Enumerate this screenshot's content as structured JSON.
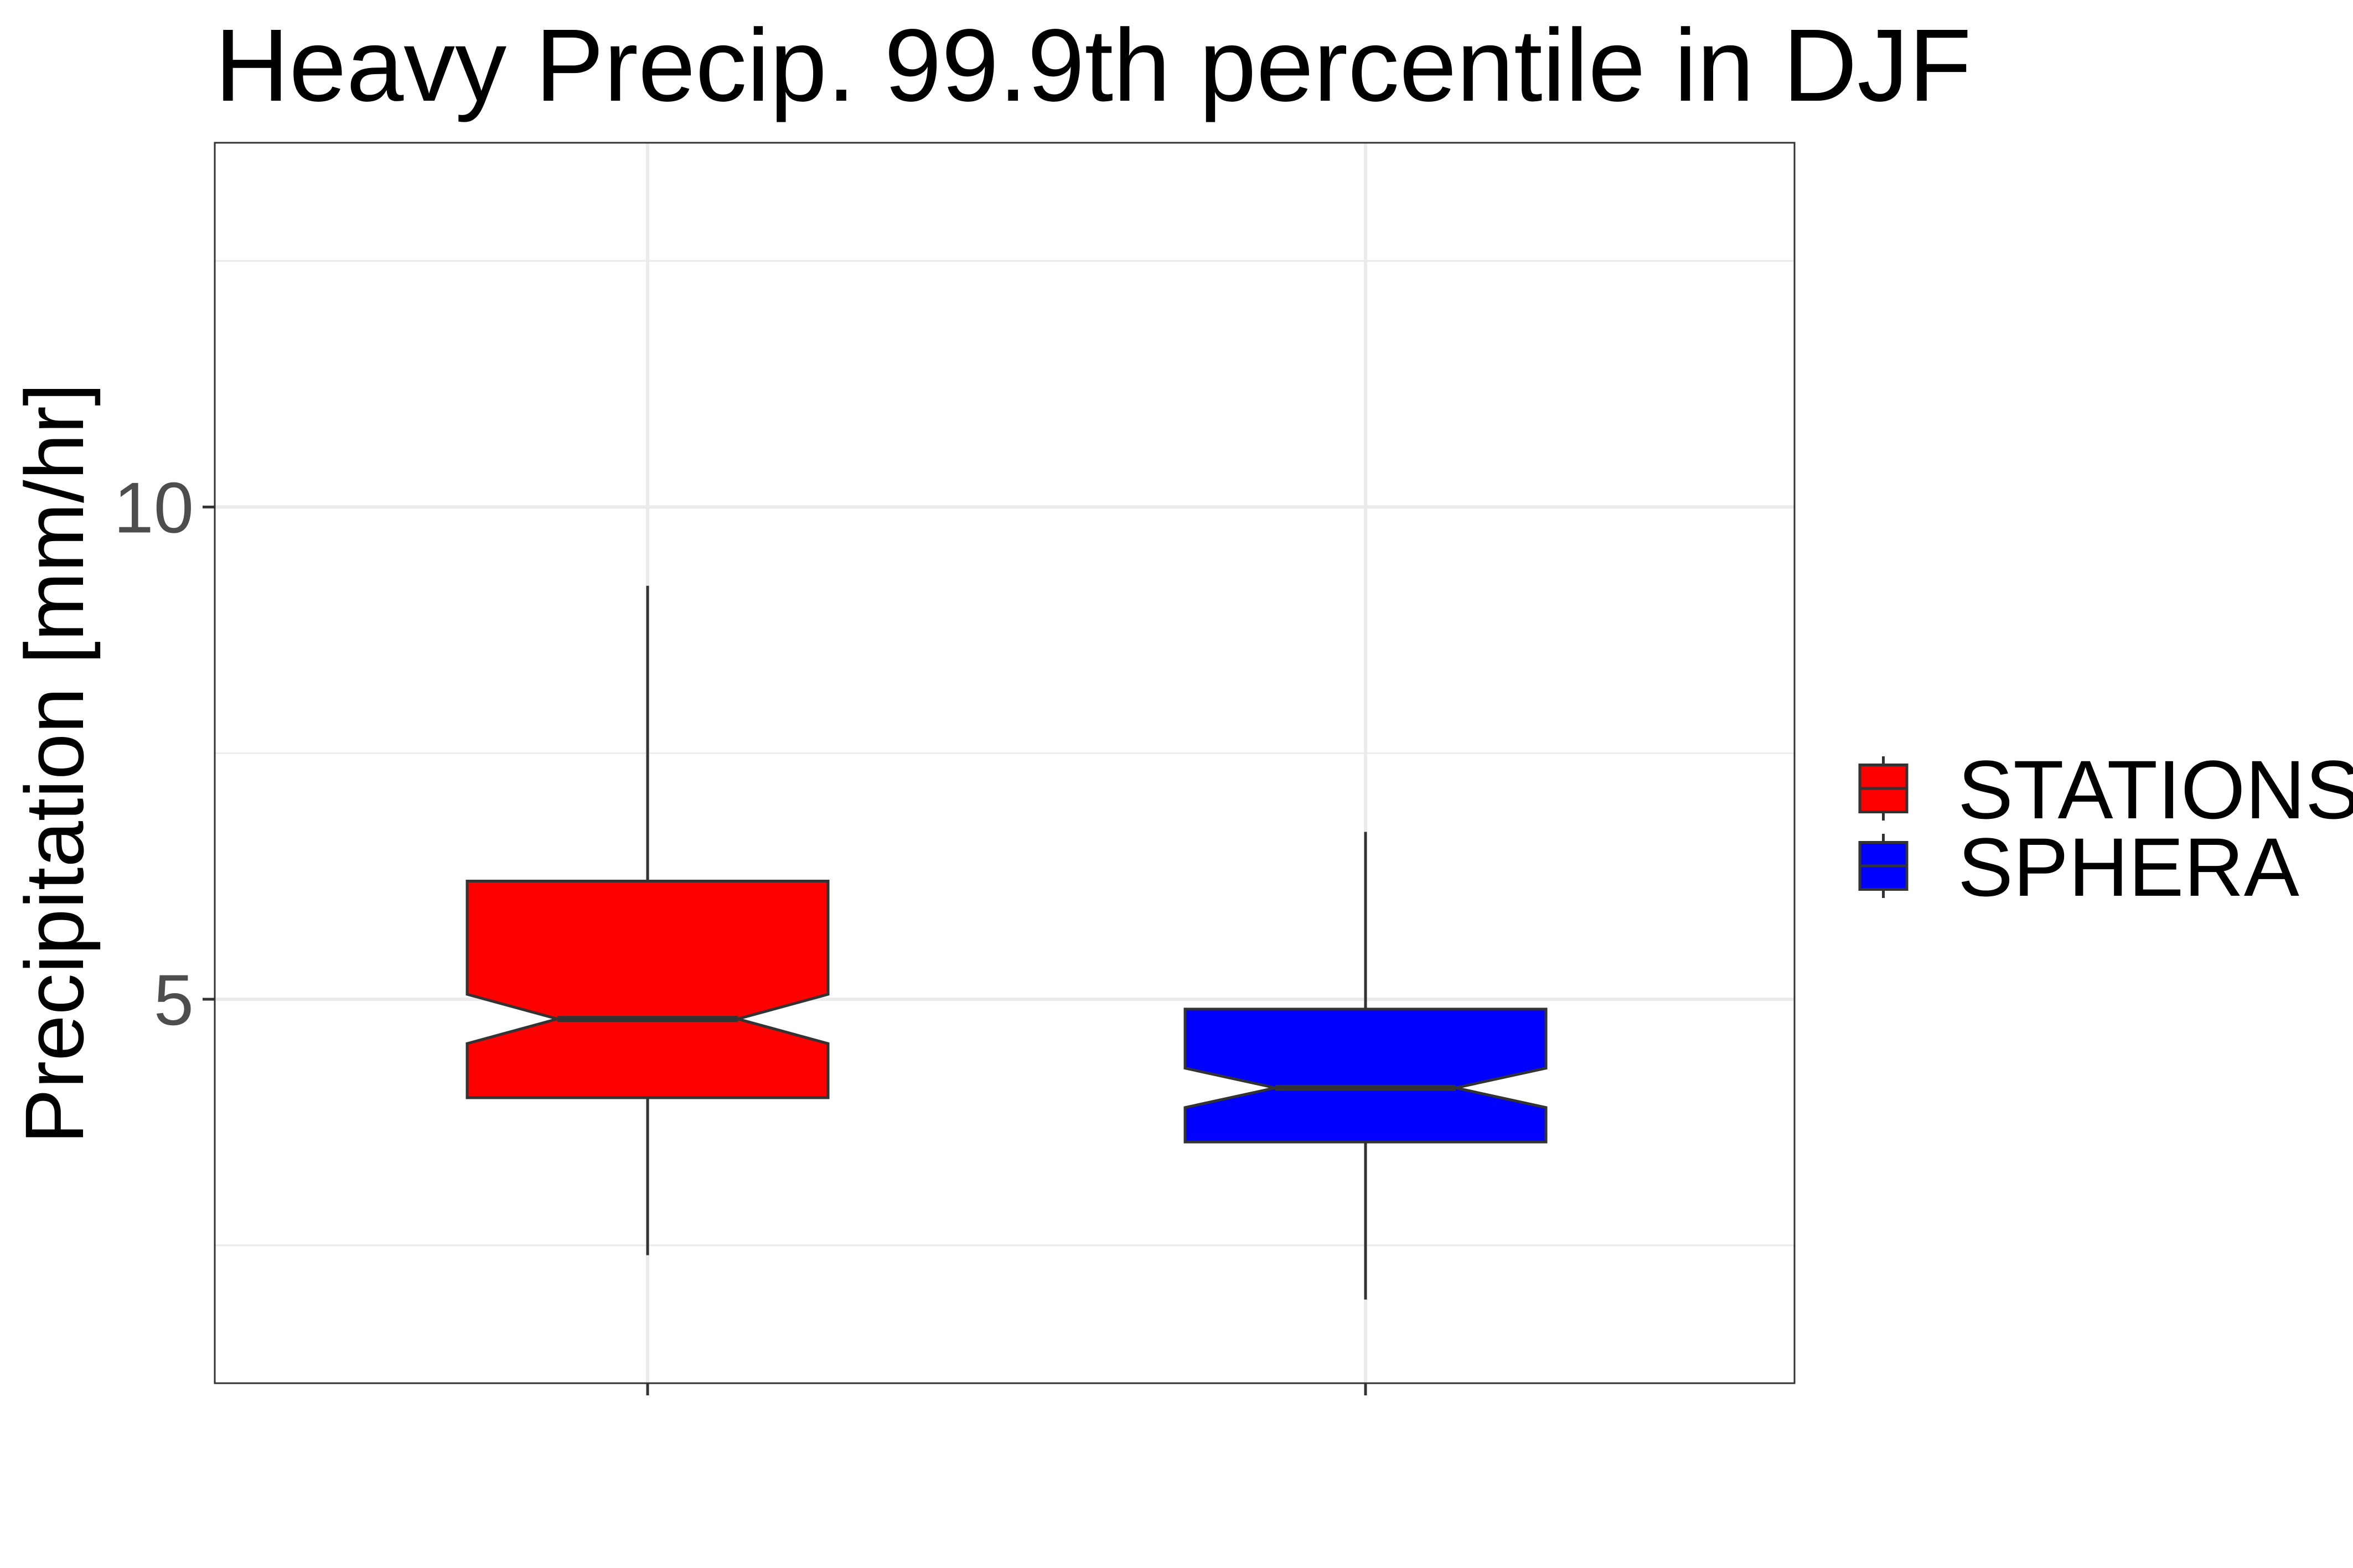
{
  "chart_data": {
    "type": "boxplot",
    "title": "Heavy Precip. 99.9th percentile in DJF",
    "xlabel": "",
    "ylabel": "Precipitation [mm/hr]",
    "ylim": [
      1.1,
      13.7
    ],
    "yticks": [
      5,
      10
    ],
    "y_tick_labels": [
      "5",
      "10"
    ],
    "y_minor_gridlines": [
      2.5,
      7.5,
      12.5
    ],
    "grid": true,
    "notched": true,
    "legend": {
      "position": "right"
    },
    "series": [
      {
        "name": "STATIONS",
        "color": "#ff0000",
        "whisker_low": 2.4,
        "q1": 4.0,
        "median": 4.8,
        "q3": 6.2,
        "whisker_high": 9.2,
        "notch_low": 4.55,
        "notch_high": 5.05
      },
      {
        "name": "SPHERA",
        "color": "#0000ff",
        "whisker_low": 1.95,
        "q1": 3.55,
        "median": 4.1,
        "q3": 4.9,
        "whisker_high": 6.7,
        "notch_low": 3.9,
        "notch_high": 4.3
      }
    ]
  }
}
